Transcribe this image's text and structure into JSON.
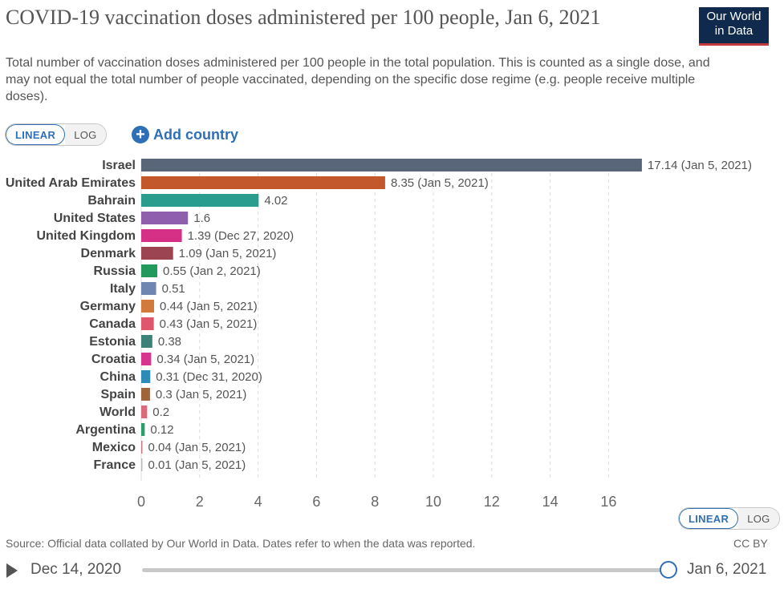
{
  "header": {
    "title": "COVID-19 vaccination doses administered per 100 people, Jan 6, 2021",
    "subtitle": "Total number of vaccination doses administered per 100 people in the total population. This is counted as a single dose, and may not equal the total number of people vaccinated, depending on the specific dose regime (e.g. people receive multiple doses).",
    "logo_line1": "Our World",
    "logo_line2": "in Data"
  },
  "controls": {
    "linear_label": "LINEAR",
    "log_label": "LOG",
    "add_country_label": "Add country",
    "add_country_icon": "plus-circle-icon"
  },
  "colors": {
    "accent": "#2f6fb5",
    "grid": "#dddddd"
  },
  "chart_data": {
    "type": "bar",
    "orientation": "horizontal",
    "categories": [
      "Israel",
      "United Arab Emirates",
      "Bahrain",
      "United States",
      "United Kingdom",
      "Denmark",
      "Russia",
      "Italy",
      "Germany",
      "Canada",
      "Estonia",
      "Croatia",
      "China",
      "Spain",
      "World",
      "Argentina",
      "Mexico",
      "France"
    ],
    "values": [
      17.14,
      8.35,
      4.02,
      1.6,
      1.39,
      1.09,
      0.55,
      0.51,
      0.44,
      0.43,
      0.38,
      0.34,
      0.31,
      0.3,
      0.2,
      0.12,
      0.04,
      0.01
    ],
    "value_labels": [
      "17.14 (Jan 5, 2021)",
      "8.35 (Jan 5, 2021)",
      "4.02",
      "1.6",
      "1.39 (Dec 27, 2020)",
      "1.09 (Jan 5, 2021)",
      "0.55 (Jan 2, 2021)",
      "0.51",
      "0.44 (Jan 5, 2021)",
      "0.43 (Jan 5, 2021)",
      "0.38",
      "0.34 (Jan 5, 2021)",
      "0.31 (Dec 31, 2020)",
      "0.3 (Jan 5, 2021)",
      "0.2",
      "0.12",
      "0.04 (Jan 5, 2021)",
      "0.01 (Jan 5, 2021)"
    ],
    "bar_colors": [
      "#59667a",
      "#c4582d",
      "#2a9d8f",
      "#8f5fae",
      "#d62f86",
      "#9c4452",
      "#239a5b",
      "#6f86b3",
      "#d17a3c",
      "#e0566c",
      "#3c8278",
      "#d9348d",
      "#2e8bb5",
      "#a0643a",
      "#d96b7c",
      "#2a9d6a",
      "#c77c8a",
      "#bbbbbb"
    ],
    "xticks": [
      0,
      2,
      4,
      6,
      8,
      10,
      12,
      14,
      16
    ],
    "xlim": [
      0,
      17.14
    ],
    "grid": "vertical dashed"
  },
  "footer": {
    "source": "Source: Official data collated by Our World in Data. Dates refer to when the data was reported.",
    "license": "CC BY"
  },
  "timeline": {
    "start": "Dec 14, 2020",
    "end": "Jan 6, 2021",
    "position": 1.0
  }
}
